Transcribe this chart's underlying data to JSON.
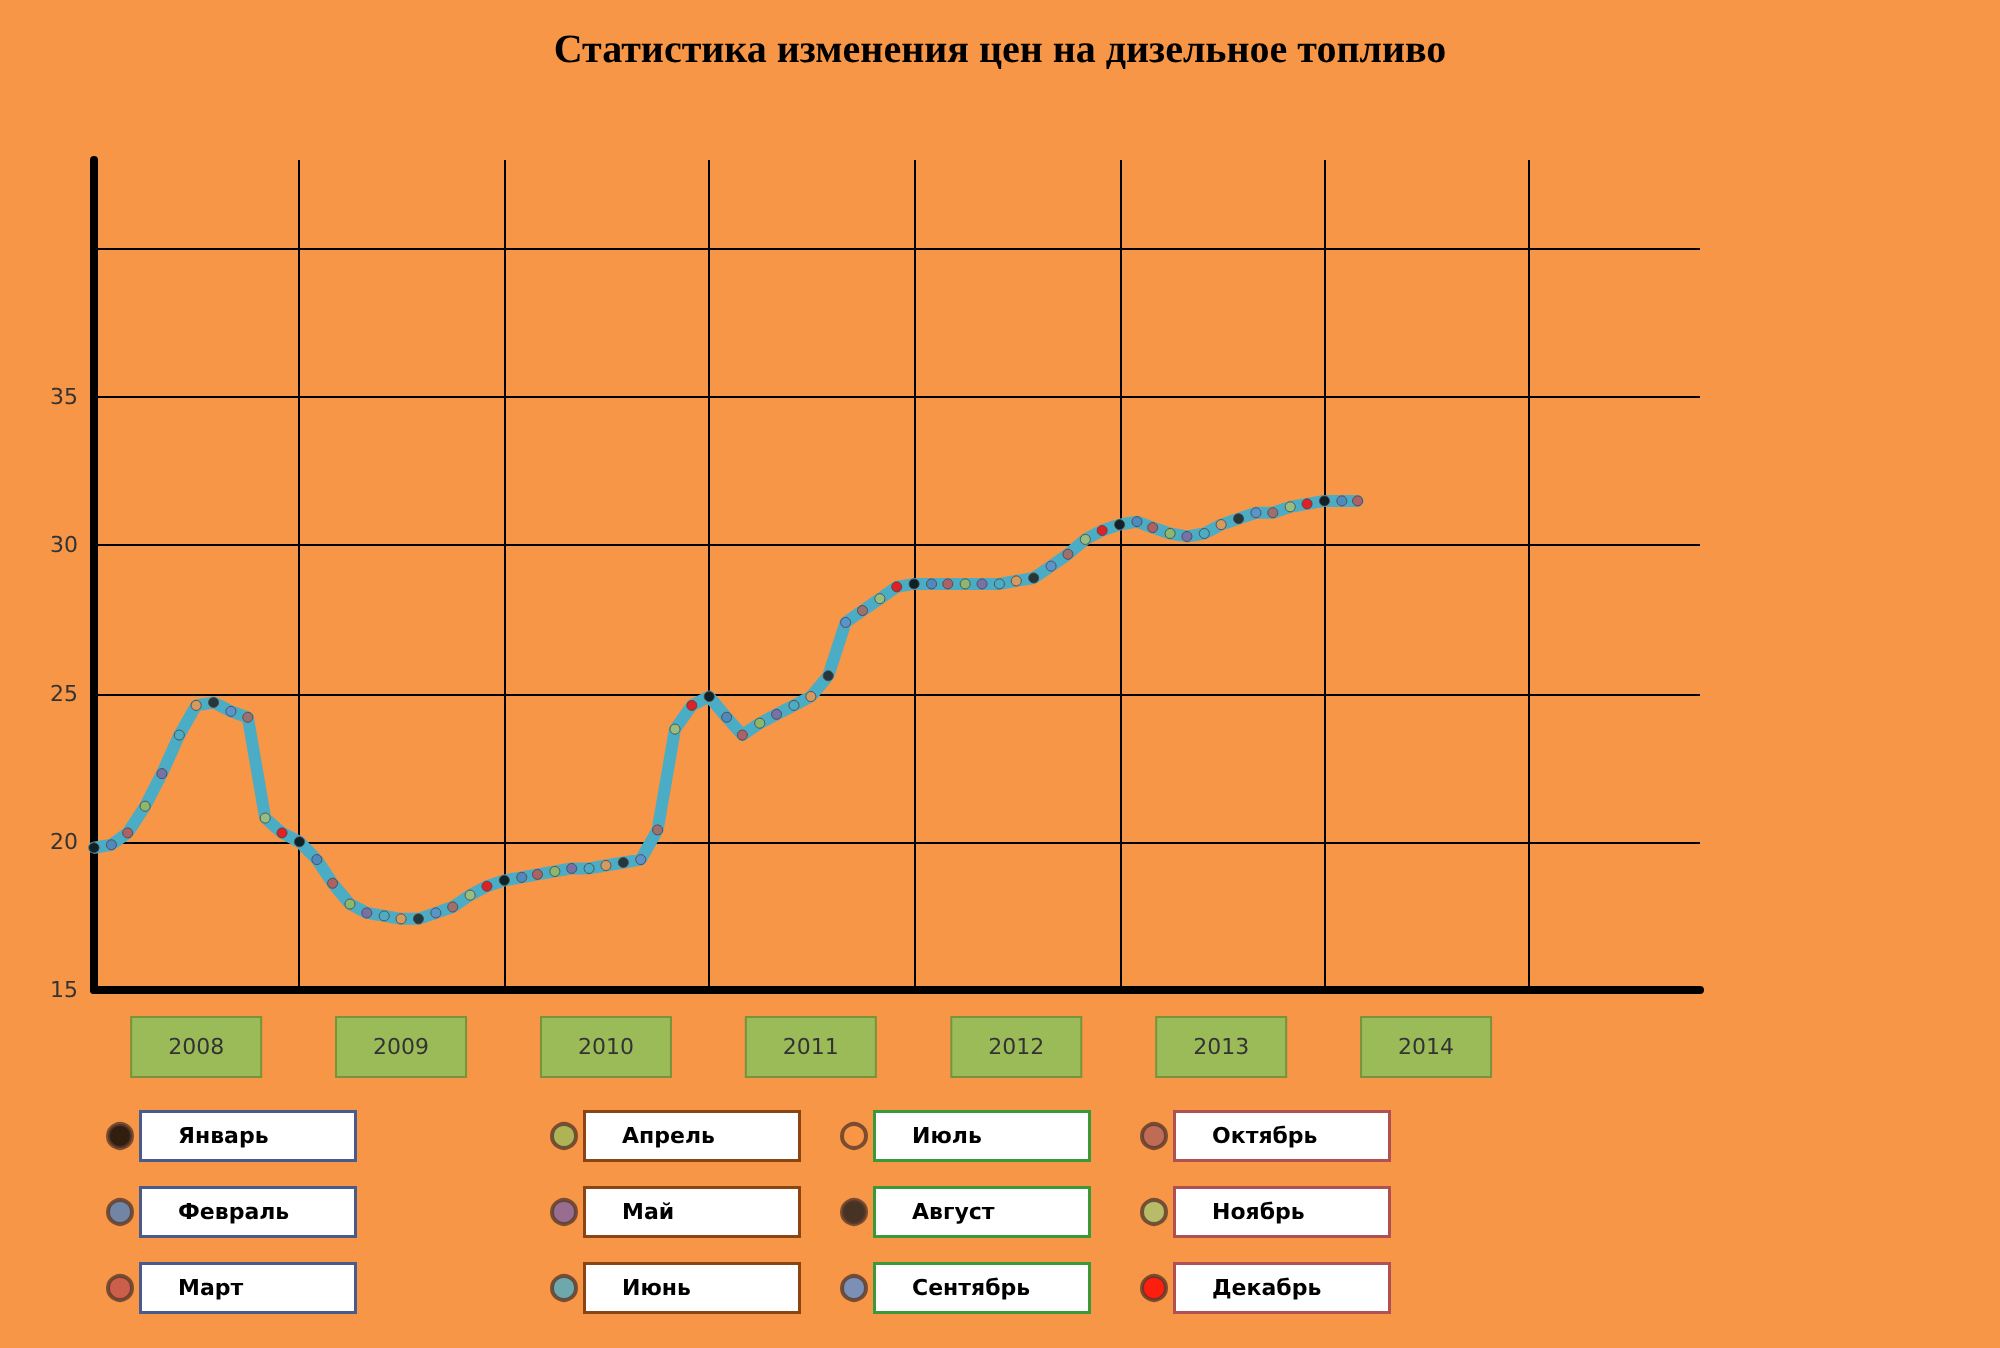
{
  "chart_data": {
    "type": "line",
    "title": "Статистика изменения цен на дизельное топливо",
    "xlim": [
      "2008-01",
      "2015-11"
    ],
    "xticks": [
      {
        "value": "2008-07",
        "label": "2008"
      },
      {
        "value": "2009-07",
        "label": "2009"
      },
      {
        "value": "2010-07",
        "label": "2010"
      },
      {
        "value": "2011-07",
        "label": "2011"
      },
      {
        "value": "2012-07",
        "label": "2012"
      },
      {
        "value": "2013-07",
        "label": "2013"
      },
      {
        "value": "2014-07",
        "label": "2014"
      },
      {
        "value": "2009-01",
        "label": null
      },
      {
        "value": "2010-01",
        "label": null
      },
      {
        "value": "2011-01",
        "label": null
      },
      {
        "value": "2012-01",
        "label": null
      },
      {
        "value": "2013-01",
        "label": null
      },
      {
        "value": "2014-01",
        "label": null
      },
      {
        "value": "2015-01",
        "label": null
      }
    ],
    "ylim": [
      15,
      43
    ],
    "yticks": [
      15,
      20,
      25,
      30,
      35,
      {
        "value": 40,
        "label": null
      }
    ],
    "grid": true,
    "legend": "bottom",
    "line_style": "solid",
    "series": [
      {
        "marker": "none",
        "color": "#4bacc6",
        "x": [
          "2008-01",
          "2008-02",
          "2008-03",
          "2008-04",
          "2008-05",
          "2008-06",
          "2008-07",
          "2008-08",
          "2008-09",
          "2008-10",
          "2008-11",
          "2008-12",
          "2009-01",
          "2009-02",
          "2009-03",
          "2009-04",
          "2009-05",
          "2009-06",
          "2009-07",
          "2009-08",
          "2009-09",
          "2009-10",
          "2009-11",
          "2009-12",
          "2010-01",
          "2010-02",
          "2010-03",
          "2010-04",
          "2010-05",
          "2010-06",
          "2010-07",
          "2010-08",
          "2010-09",
          "2010-10",
          "2010-11",
          "2010-12",
          "2011-01",
          "2011-02",
          "2011-03",
          "2011-04",
          "2011-05",
          "2011-06",
          "2011-07",
          "2011-08",
          "2011-09",
          "2011-10",
          "2011-11",
          "2011-12",
          "2012-01",
          "2012-02",
          "2012-03",
          "2012-04",
          "2012-05",
          "2012-06",
          "2012-07",
          "2012-08",
          "2012-09",
          "2012-10",
          "2012-11",
          "2012-12",
          "2013-01",
          "2013-02",
          "2013-03",
          "2013-04",
          "2013-05",
          "2013-06",
          "2013-07",
          "2013-08",
          "2013-09",
          "2013-10",
          "2013-11",
          "2013-12",
          "2014-01",
          "2014-02",
          "2014-03"
        ],
        "values": [
          19.8,
          19.9,
          20.3,
          21.2,
          22.3,
          23.6,
          24.6,
          24.7,
          24.4,
          24.2,
          20.8,
          20.3,
          20.0,
          19.4,
          18.6,
          17.9,
          17.6,
          17.5,
          17.4,
          17.4,
          17.6,
          17.8,
          18.2,
          18.5,
          18.7,
          18.8,
          18.9,
          19.0,
          19.1,
          19.1,
          19.2,
          19.3,
          19.4,
          20.4,
          23.8,
          24.6,
          24.9,
          24.2,
          23.6,
          24.0,
          24.3,
          24.6,
          24.9,
          25.6,
          27.4,
          27.8,
          28.2,
          28.6,
          28.7,
          28.7,
          28.7,
          28.7,
          28.7,
          28.7,
          28.8,
          28.9,
          29.3,
          29.7,
          30.2,
          30.5,
          30.7,
          30.8,
          30.6,
          30.4,
          30.3,
          30.4,
          30.7,
          30.9,
          31.1,
          31.1,
          31.3,
          31.4,
          31.5,
          31.5,
          31.5
        ]
      },
      {
        "type": "scatter",
        "marker": "circle",
        "name": "Январь",
        "color": "#000000",
        "x": [
          "2008-01",
          "2009-01",
          "2010-01",
          "2011-01",
          "2012-01",
          "2013-01",
          "2014-01"
        ],
        "values": [
          19.8,
          20.0,
          18.7,
          24.9,
          28.7,
          30.7,
          31.5
        ]
      },
      {
        "type": "scatter",
        "marker": "circle",
        "name": "Февраль",
        "color": "#4f81bd",
        "x": [
          "2008-02",
          "2009-02",
          "2010-02",
          "2011-02",
          "2012-02",
          "2013-02",
          "2014-02"
        ],
        "values": [
          19.9,
          19.4,
          18.8,
          24.2,
          28.7,
          30.8,
          31.5
        ]
      },
      {
        "type": "scatter",
        "marker": "circle",
        "name": "Март",
        "color": "#c0504d",
        "x": [
          "2008-03",
          "2009-03",
          "2010-03",
          "2011-03",
          "2012-03",
          "2013-03",
          "2014-03"
        ],
        "values": [
          20.3,
          18.6,
          18.9,
          23.6,
          28.7,
          30.6,
          31.5
        ]
      },
      {
        "type": "scatter",
        "marker": "circle",
        "name": "Апрель",
        "color": "#9bbb59",
        "x": [
          "2008-04",
          "2009-04",
          "2010-04",
          "2011-04",
          "2012-04",
          "2013-04"
        ],
        "values": [
          21.2,
          17.9,
          19.0,
          24.0,
          28.7,
          30.4
        ]
      },
      {
        "type": "scatter",
        "marker": "circle",
        "name": "Май",
        "color": "#8064a2",
        "x": [
          "2008-05",
          "2009-05",
          "2010-05",
          "2011-05",
          "2012-05",
          "2013-05"
        ],
        "values": [
          22.3,
          17.6,
          19.1,
          24.3,
          28.7,
          30.3
        ]
      },
      {
        "type": "scatter",
        "marker": "circle",
        "name": "Июнь",
        "color": "#4bacc6",
        "x": [
          "2008-06",
          "2009-06",
          "2010-06",
          "2011-06",
          "2012-06",
          "2013-06"
        ],
        "values": [
          23.6,
          17.5,
          19.1,
          24.6,
          28.7,
          30.4
        ]
      },
      {
        "type": "scatter",
        "marker": "circle",
        "name": "Июль",
        "color": "#f79646",
        "x": [
          "2008-07",
          "2009-07",
          "2010-07",
          "2011-07",
          "2012-07",
          "2013-07"
        ],
        "values": [
          24.6,
          17.4,
          19.2,
          24.9,
          28.8,
          30.7
        ]
      },
      {
        "type": "scatter",
        "marker": "circle",
        "name": "Август",
        "color": "#1a1a1a",
        "x": [
          "2008-08",
          "2009-08",
          "2010-08",
          "2011-08",
          "2012-08",
          "2013-08"
        ],
        "values": [
          24.7,
          17.4,
          19.3,
          25.6,
          28.9,
          30.9
        ]
      },
      {
        "type": "scatter",
        "marker": "circle",
        "name": "Сентябрь",
        "color": "#5b8fd0",
        "x": [
          "2008-09",
          "2009-09",
          "2010-09",
          "2011-09",
          "2012-09",
          "2013-09"
        ],
        "values": [
          24.4,
          17.6,
          19.4,
          27.4,
          29.3,
          31.1
        ]
      },
      {
        "type": "scatter",
        "marker": "circle",
        "name": "Октябрь",
        "color": "#b0605a",
        "x": [
          "2008-10",
          "2009-10",
          "2010-10",
          "2011-10",
          "2012-10",
          "2013-10"
        ],
        "values": [
          24.2,
          17.8,
          20.4,
          27.8,
          29.7,
          31.1
        ]
      },
      {
        "type": "scatter",
        "marker": "circle",
        "name": "Ноябрь",
        "color": "#a8c470",
        "x": [
          "2008-11",
          "2009-11",
          "2010-11",
          "2011-11",
          "2012-11",
          "2013-11"
        ],
        "values": [
          20.8,
          18.2,
          23.8,
          28.2,
          30.2,
          31.3
        ]
      },
      {
        "type": "scatter",
        "marker": "circle",
        "name": "Декабрь",
        "color": "#ff0000",
        "x": [
          "2008-12",
          "2009-12",
          "2010-12",
          "2011-12",
          "2012-12",
          "2013-12"
        ],
        "values": [
          20.3,
          18.5,
          24.6,
          28.6,
          30.5,
          31.4
        ]
      }
    ]
  }
}
